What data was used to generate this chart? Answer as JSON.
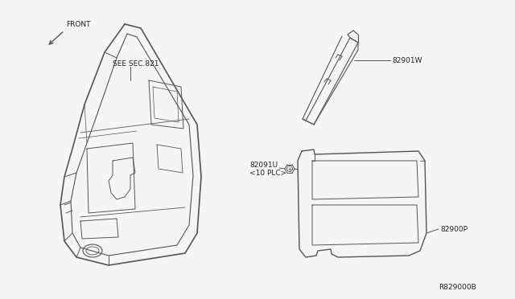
{
  "background_color": "#f5f5f5",
  "line_color": "#555555",
  "text_color": "#222222",
  "labels": {
    "front_arrow": "FRONT",
    "sec_ref": "SEE SEC.821",
    "part_82901W": "82901W",
    "part_82091U": "82091U",
    "part_82091U_sub": "<10 PLC>",
    "part_82900P": "82900P",
    "diagram_num": "R829000B"
  },
  "font_size": 6.5
}
